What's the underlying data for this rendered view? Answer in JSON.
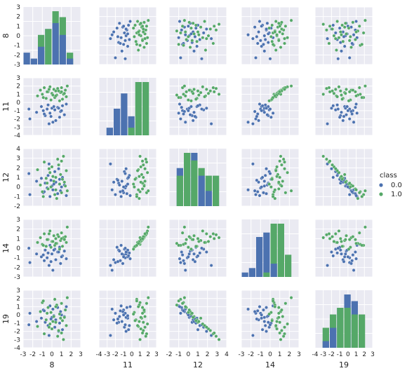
{
  "chart_data": {
    "type": "scatter",
    "subtype": "pairplot",
    "variables": [
      "8",
      "11",
      "12",
      "14",
      "19"
    ],
    "hue": "class",
    "legend": {
      "title": "class",
      "position": "right",
      "entries": [
        {
          "label": "0.0",
          "color": "#4c72b0"
        },
        {
          "label": "1.0",
          "color": "#55a868"
        }
      ]
    },
    "colors": {
      "background": "#eaeaf2",
      "grid": "#ffffff",
      "class0": "#4c72b0",
      "class1": "#55a868"
    },
    "grid": true,
    "axis_ranges": {
      "8": [
        -3,
        3
      ],
      "11": [
        -4,
        3
      ],
      "12": [
        -2,
        4
      ],
      "14": [
        -3,
        3
      ],
      "19": [
        -4,
        3
      ]
    },
    "x_ticks": {
      "8": [
        "-3",
        "-2",
        "-1",
        "0",
        "1",
        "2",
        "3"
      ],
      "11": [
        "-4",
        "-3",
        "-2",
        "-1",
        "0",
        "1",
        "2",
        "3"
      ],
      "12": [
        "-2",
        "-1",
        "0",
        "1",
        "2",
        "3",
        "4"
      ],
      "14": [
        "-3",
        "-2",
        "-1",
        "0",
        "1",
        "2",
        "3"
      ],
      "19": [
        "-4",
        "-3",
        "-2",
        "-1",
        "0",
        "1",
        "2",
        "3"
      ]
    },
    "y_ticks": {
      "8": [
        "-3",
        "-2",
        "-1",
        "0",
        "1",
        "2",
        "3"
      ],
      "11": [
        "-4",
        "-3",
        "-2",
        "-1",
        "0",
        "1",
        "2",
        "3"
      ],
      "12": [
        "-2",
        "-1",
        "0",
        "1",
        "2",
        "3",
        "4"
      ],
      "14": [
        "-3",
        "-2",
        "-1",
        "0",
        "1",
        "2",
        "3"
      ],
      "19": [
        "-4",
        "-3",
        "-2",
        "-1",
        "0",
        "1",
        "2",
        "3"
      ]
    },
    "points": {
      "class0": [
        [
          -2.3,
          -2.0,
          -0.8,
          -1.5,
          0.2
        ],
        [
          -1.1,
          -0.5,
          0.9,
          -0.9,
          -0.4
        ],
        [
          -0.9,
          -1.0,
          -0.6,
          -0.7,
          0.6
        ],
        [
          -0.7,
          -1.6,
          0.4,
          -0.2,
          -0.9
        ],
        [
          -0.5,
          -0.8,
          -0.1,
          -1.0,
          0.2
        ],
        [
          -0.4,
          -0.3,
          1.2,
          -0.5,
          -1.3
        ],
        [
          -0.2,
          -1.3,
          -1.0,
          0.3,
          1.1
        ],
        [
          0.0,
          -0.7,
          0.1,
          -0.6,
          -0.3
        ],
        [
          0.1,
          -2.4,
          -0.3,
          -2.3,
          0.7
        ],
        [
          0.3,
          -0.9,
          1.6,
          -0.1,
          -1.5
        ],
        [
          0.4,
          -2.2,
          0.5,
          -1.2,
          -0.6
        ],
        [
          0.6,
          -0.6,
          -0.7,
          -0.4,
          0.9
        ],
        [
          0.8,
          -1.8,
          0.8,
          0.1,
          -1.0
        ],
        [
          0.9,
          -1.1,
          -0.4,
          -1.6,
          0.4
        ],
        [
          1.1,
          -0.4,
          1.0,
          -0.8,
          -1.8
        ],
        [
          1.3,
          -1.5,
          0.2,
          -0.3,
          -0.2
        ],
        [
          1.5,
          -0.2,
          -0.9,
          -1.1,
          1.0
        ],
        [
          -1.6,
          -1.2,
          0.6,
          -0.6,
          -0.8
        ],
        [
          -0.3,
          -2.6,
          2.4,
          -1.8,
          -2.5
        ],
        [
          1.0,
          -1.0,
          0.0,
          -0.9,
          0.0
        ],
        [
          -2.4,
          -0.8,
          1.4,
          0.0,
          -1.2
        ],
        [
          0.2,
          -0.5,
          0.3,
          -0.2,
          -0.1
        ],
        [
          -0.8,
          -1.4,
          -0.5,
          -1.3,
          0.5
        ],
        [
          0.7,
          -0.7,
          1.9,
          -0.4,
          -2.0
        ],
        [
          -0.1,
          -1.7,
          0.7,
          -1.4,
          -0.5
        ]
      ],
      "class1": [
        [
          -1.5,
          0.8,
          1.8,
          0.6,
          -1.4
        ],
        [
          -1.2,
          1.5,
          0.2,
          1.1,
          0.4
        ],
        [
          -1.0,
          1.0,
          -0.5,
          0.4,
          1.5
        ],
        [
          -0.8,
          1.8,
          2.6,
          1.5,
          -2.3
        ],
        [
          -0.6,
          0.5,
          0.9,
          0.2,
          -0.6
        ],
        [
          -0.4,
          1.3,
          -0.2,
          0.9,
          0.9
        ],
        [
          -0.2,
          1.9,
          1.5,
          1.8,
          -1.1
        ],
        [
          -0.1,
          0.3,
          0.0,
          0.1,
          0.3
        ],
        [
          0.0,
          1.1,
          2.1,
          0.7,
          -1.7
        ],
        [
          0.2,
          1.6,
          0.6,
          1.3,
          -0.2
        ],
        [
          0.3,
          0.6,
          -0.8,
          0.3,
          1.9
        ],
        [
          0.4,
          1.4,
          1.0,
          1.0,
          -0.9
        ],
        [
          0.5,
          0.9,
          -1.2,
          0.5,
          1.2
        ],
        [
          0.6,
          1.7,
          2.9,
          1.4,
          -2.6
        ],
        [
          0.8,
          0.2,
          0.3,
          -0.1,
          0.1
        ],
        [
          0.9,
          1.2,
          1.3,
          0.8,
          -0.4
        ],
        [
          1.0,
          1.8,
          -0.6,
          1.6,
          1.4
        ],
        [
          1.1,
          0.4,
          0.8,
          0.2,
          -0.7
        ],
        [
          1.2,
          1.0,
          3.2,
          1.1,
          -3.0
        ],
        [
          1.4,
          1.5,
          0.1,
          1.2,
          0.6
        ],
        [
          1.5,
          0.7,
          1.7,
          0.6,
          -1.3
        ],
        [
          1.6,
          2.0,
          -0.4,
          2.2,
          2.1
        ],
        [
          -0.5,
          1.3,
          0.4,
          0.9,
          0.2
        ],
        [
          0.1,
          0.9,
          1.1,
          0.7,
          -0.8
        ],
        [
          0.7,
          1.4,
          2.3,
          1.2,
          -1.9
        ],
        [
          -0.9,
          0.6,
          -1.0,
          0.3,
          1.7
        ],
        [
          1.3,
          1.1,
          0.5,
          0.9,
          -0.3
        ],
        [
          -0.3,
          1.6,
          1.9,
          1.5,
          -1.5
        ],
        [
          0.4,
          0.8,
          -0.3,
          0.5,
          1.0
        ],
        [
          1.0,
          1.3,
          2.7,
          1.0,
          -2.2
        ]
      ]
    }
  }
}
